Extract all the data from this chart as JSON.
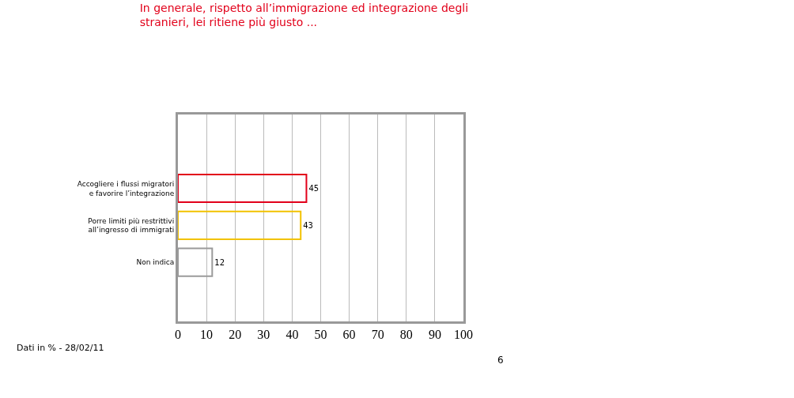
{
  "chart_data": {
    "type": "bar",
    "orientation": "horizontal",
    "title": "In generale, rispetto all’immigrazione ed integrazione degli stranieri, lei ritiene più giusto ...",
    "categories": [
      "Accogliere i flussi migratori e favorire l’integrazione",
      "Porre limiti più restrittivi all’ingresso di immigrati",
      "Non indica"
    ],
    "values": [
      45,
      43,
      12
    ],
    "colors": [
      "#e2001a",
      "#f2c200",
      "#9a9a9a"
    ],
    "xlim": [
      0,
      100
    ],
    "xticks": [
      0,
      10,
      20,
      30,
      40,
      50,
      60,
      70,
      80,
      90,
      100
    ],
    "grid": "x",
    "data_labels": true,
    "annotations": [
      "Dati in % - 28/02/11",
      "6"
    ]
  }
}
